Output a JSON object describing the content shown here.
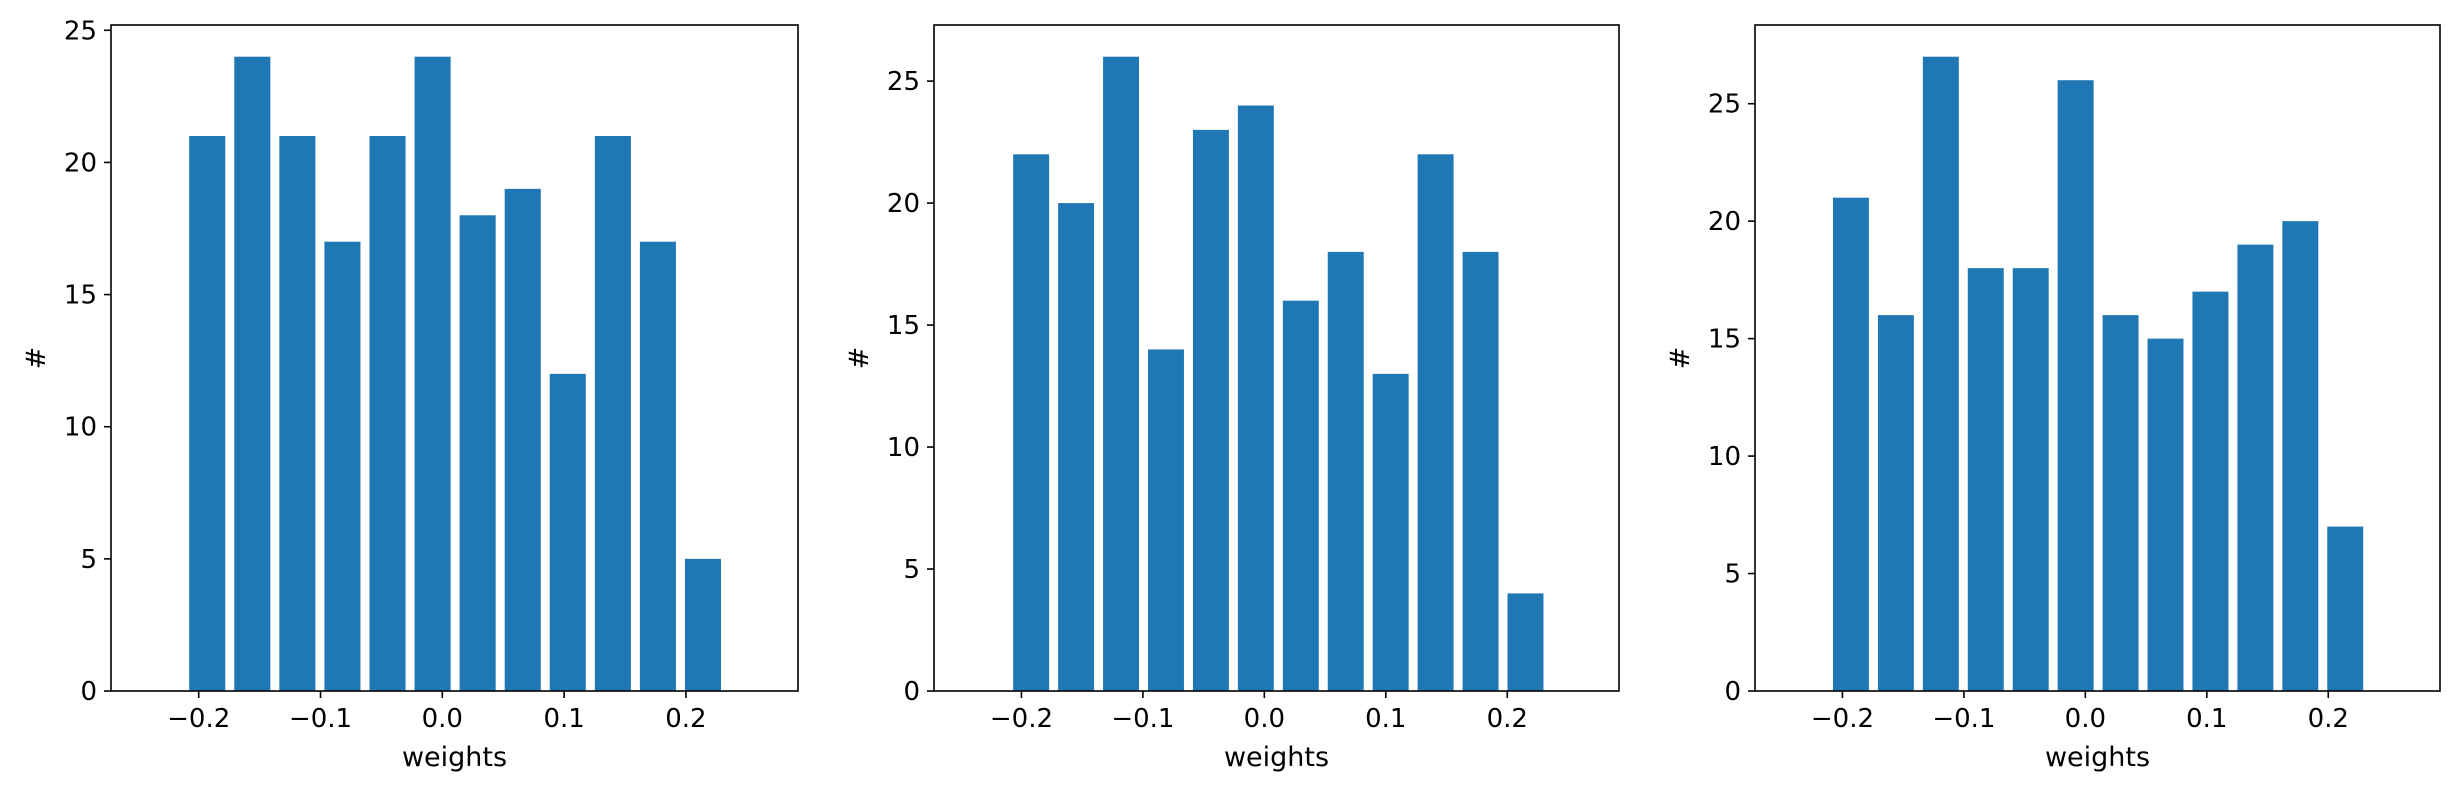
{
  "chart_data": [
    {
      "type": "bar",
      "xlabel": "weights",
      "ylabel": "#",
      "xlim": [
        -0.272,
        0.292
      ],
      "ylim": [
        0,
        25.2
      ],
      "x": [
        -0.193,
        -0.156,
        -0.119,
        -0.082,
        -0.045,
        -0.008,
        0.029,
        0.066,
        0.103,
        0.14,
        0.177,
        0.214
      ],
      "values": [
        21,
        24,
        21,
        17,
        21,
        24,
        18,
        19,
        12,
        21,
        17,
        5
      ],
      "bar_width": 0.0296,
      "xticks": [
        -0.2,
        -0.1,
        0.0,
        0.1,
        0.2
      ],
      "xtick_labels": [
        "−0.2",
        "−0.1",
        "0.0",
        "0.1",
        "0.2"
      ],
      "yticks": [
        0,
        5,
        10,
        15,
        20,
        25
      ],
      "ytick_labels": [
        "0",
        "5",
        "10",
        "15",
        "20",
        "25"
      ],
      "color": "#1f77b4"
    },
    {
      "type": "bar",
      "xlabel": "weights",
      "ylabel": "#",
      "xlim": [
        -0.272,
        0.292
      ],
      "ylim": [
        0,
        27.3
      ],
      "x": [
        -0.192,
        -0.155,
        -0.118,
        -0.081,
        -0.044,
        -0.007,
        0.03,
        0.067,
        0.104,
        0.141,
        0.178,
        0.215
      ],
      "values": [
        22,
        20,
        26,
        14,
        23,
        24,
        16,
        18,
        13,
        22,
        18,
        4
      ],
      "bar_width": 0.0296,
      "xticks": [
        -0.2,
        -0.1,
        0.0,
        0.1,
        0.2
      ],
      "xtick_labels": [
        "−0.2",
        "−0.1",
        "0.0",
        "0.1",
        "0.2"
      ],
      "yticks": [
        0,
        5,
        10,
        15,
        20,
        25
      ],
      "ytick_labels": [
        "0",
        "5",
        "10",
        "15",
        "20",
        "25"
      ],
      "color": "#1f77b4"
    },
    {
      "type": "bar",
      "xlabel": "weights",
      "ylabel": "#",
      "xlim": [
        -0.272,
        0.292
      ],
      "ylim": [
        0,
        28.35
      ],
      "x": [
        -0.193,
        -0.156,
        -0.119,
        -0.082,
        -0.045,
        -0.008,
        0.029,
        0.066,
        0.103,
        0.14,
        0.177,
        0.214
      ],
      "values": [
        21,
        16,
        27,
        18,
        18,
        26,
        16,
        15,
        17,
        19,
        20,
        7
      ],
      "bar_width": 0.0296,
      "xticks": [
        -0.2,
        -0.1,
        0.0,
        0.1,
        0.2
      ],
      "xtick_labels": [
        "−0.2",
        "−0.1",
        "0.0",
        "0.1",
        "0.2"
      ],
      "yticks": [
        0,
        5,
        10,
        15,
        20,
        25
      ],
      "ytick_labels": [
        "0",
        "5",
        "10",
        "15",
        "20",
        "25"
      ],
      "color": "#1f77b4"
    }
  ]
}
